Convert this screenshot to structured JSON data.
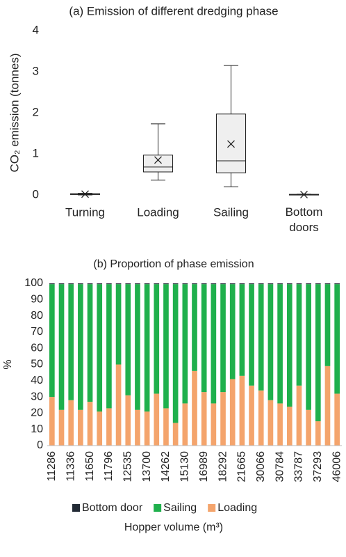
{
  "chart_data": [
    {
      "type": "box",
      "title": "(a) Emission of different dredging phase",
      "ylabel": "CO₂ emission (tonnes)",
      "categories": [
        "Turning",
        "Loading",
        "Sailing",
        "Bottom doors"
      ],
      "boxes": [
        {
          "min": 0,
          "q1": 0.01,
          "median": 0.02,
          "q3": 0.03,
          "max": 0.04,
          "mean": 0.02
        },
        {
          "min": 0.36,
          "q1": 0.56,
          "median": 0.68,
          "q3": 0.97,
          "max": 1.73,
          "mean": 0.85
        },
        {
          "min": 0.2,
          "q1": 0.54,
          "median": 0.83,
          "q3": 1.97,
          "max": 3.15,
          "mean": 1.24
        },
        {
          "min": 0,
          "q1": 0.005,
          "median": 0.01,
          "q3": 0.015,
          "max": 0.02,
          "mean": 0.01
        }
      ],
      "color": "#efefef",
      "ylim": [
        0,
        4
      ],
      "yticks": [
        0,
        1,
        2,
        3,
        4
      ]
    },
    {
      "type": "stacked_bar",
      "title": "(b) Proportion of phase emission",
      "xlabel": "Hopper volume (m³)",
      "ylabel": "%",
      "categories": [
        "11286",
        null,
        "11336",
        null,
        "11650",
        null,
        "11796",
        null,
        "12535",
        null,
        "13700",
        null,
        "14262",
        null,
        "15130",
        null,
        "16989",
        null,
        "18292",
        null,
        "21665",
        null,
        "30066",
        null,
        "30784",
        null,
        "33787",
        null,
        "37293",
        null,
        "46006"
      ],
      "series": [
        {
          "name": "Bottom door",
          "color": "#222a35",
          "values": [
            0.5,
            0.5,
            0.5,
            0.5,
            0.5,
            0.5,
            0.5,
            0.5,
            0.5,
            0.5,
            0.5,
            0.5,
            0.5,
            0.5,
            0.5,
            0.5,
            0.5,
            0.5,
            0.5,
            0.5,
            0.5,
            0.5,
            0.5,
            0.5,
            0.5,
            0.5,
            0.5,
            0.5,
            0.5,
            0.5,
            0.5
          ]
        },
        {
          "name": "Sailing",
          "color": "#1fb04c",
          "values": [
            69.5,
            77.5,
            71.5,
            77.5,
            72.5,
            78.5,
            76.5,
            49.5,
            68.5,
            77.5,
            78.5,
            67.5,
            76.5,
            85.5,
            73.5,
            53.5,
            66.5,
            73.5,
            66.5,
            58.5,
            56.5,
            62.5,
            65.5,
            71.5,
            73.5,
            75.5,
            62.5,
            77.5,
            84.5,
            50.5,
            67.5
          ]
        },
        {
          "name": "Loading",
          "color": "#f4a46c",
          "values": [
            30,
            22,
            28,
            22,
            27,
            21,
            23,
            50,
            31,
            22,
            21,
            32,
            23,
            14,
            26,
            46,
            33,
            26,
            33,
            41,
            43,
            37,
            34,
            28,
            26,
            24,
            37,
            22,
            15,
            49,
            32
          ]
        }
      ],
      "ylim": [
        0,
        100
      ],
      "yticks": [
        0,
        10,
        20,
        30,
        40,
        50,
        60,
        70,
        80,
        90,
        100
      ],
      "legend": "bottom"
    }
  ]
}
